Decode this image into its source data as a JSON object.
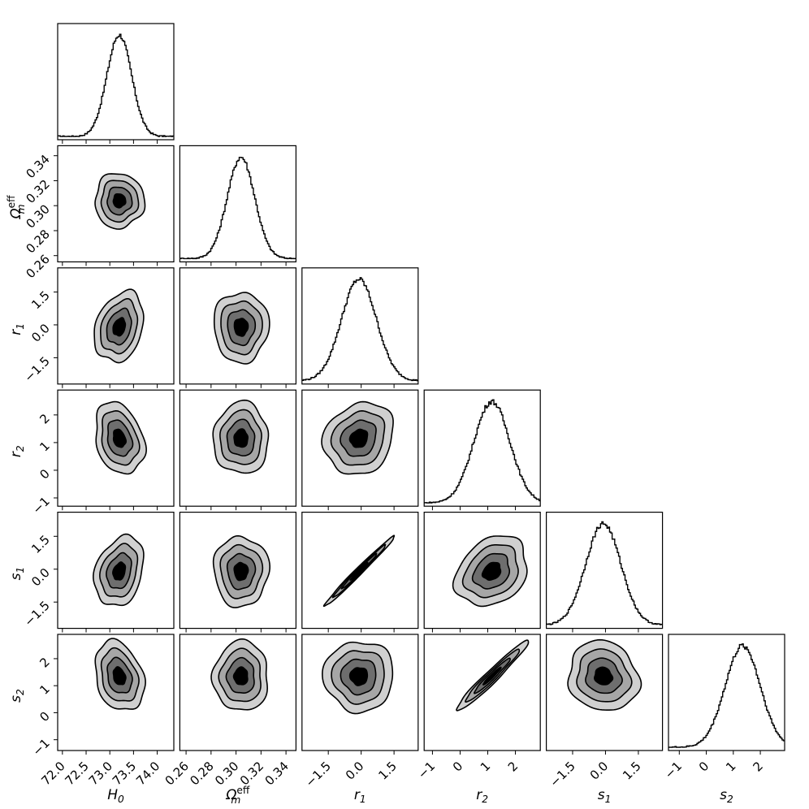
{
  "chart_data": {
    "type": "corner",
    "parameters": [
      {
        "key": "H0",
        "label_base": "H",
        "label_sub": "0",
        "label_sup": "",
        "range": [
          71.9,
          74.35
        ],
        "ticks": [
          72.0,
          72.5,
          73.0,
          73.5,
          74.0
        ],
        "tick_labels": [
          "72.0",
          "72.5",
          "73.0",
          "73.5",
          "74.0"
        ],
        "mean": 73.2,
        "sigma": 0.26
      },
      {
        "key": "Om",
        "label_base": "Ω",
        "label_sub": "m",
        "label_sup": "eff",
        "range": [
          0.255,
          0.348
        ],
        "ticks": [
          0.26,
          0.28,
          0.3,
          0.32,
          0.34
        ],
        "tick_labels": [
          "0.26",
          "0.28",
          "0.30",
          "0.32",
          "0.34"
        ],
        "mean": 0.304,
        "sigma": 0.011
      },
      {
        "key": "r1",
        "label_base": "r",
        "label_sub": "1",
        "label_sup": "",
        "range": [
          -2.7,
          2.6
        ],
        "ticks": [
          -1.5,
          0.0,
          1.5
        ],
        "tick_labels": [
          "−1.5",
          "0.0",
          "1.5"
        ],
        "mean": -0.1,
        "sigma": 0.8
      },
      {
        "key": "r2",
        "label_base": "r",
        "label_sub": "2",
        "label_sup": "",
        "range": [
          -1.3,
          2.9
        ],
        "ticks": [
          -1,
          0,
          1,
          2
        ],
        "tick_labels": [
          "−1",
          "0",
          "1",
          "2"
        ],
        "mean": 1.15,
        "sigma": 0.65
      },
      {
        "key": "s1",
        "label_base": "s",
        "label_sub": "1",
        "label_sup": "",
        "range": [
          -2.7,
          2.6
        ],
        "ticks": [
          -1.5,
          0.0,
          1.5
        ],
        "tick_labels": [
          "−1.5",
          "0.0",
          "1.5"
        ],
        "mean": -0.1,
        "sigma": 0.8
      },
      {
        "key": "s2",
        "label_base": "s",
        "label_sub": "2",
        "label_sup": "",
        "range": [
          -1.4,
          2.9
        ],
        "ticks": [
          -1,
          0,
          1,
          2
        ],
        "tick_labels": [
          "−1",
          "0",
          "1",
          "2"
        ],
        "mean": 1.35,
        "sigma": 0.65
      }
    ],
    "correlations": {
      "r1-s1": 0.99,
      "r2-s2": 0.97,
      "r1-H0": 0.25,
      "r2-H0": -0.25,
      "s1-H0": 0.25,
      "s2-H0": -0.25,
      "r1-r2": 0.15,
      "s1-r2": 0.25,
      "s2-s1": -0.1
    },
    "contour_levels": [
      0.5,
      1.0,
      1.5,
      2.0
    ],
    "contour_fills": [
      "#000000",
      "#6e6e6e",
      "#a6a6a6",
      "#d0d0d0"
    ],
    "line_color": "#000000",
    "title": "",
    "xlabel": "",
    "ylabel": "",
    "grid": false
  }
}
